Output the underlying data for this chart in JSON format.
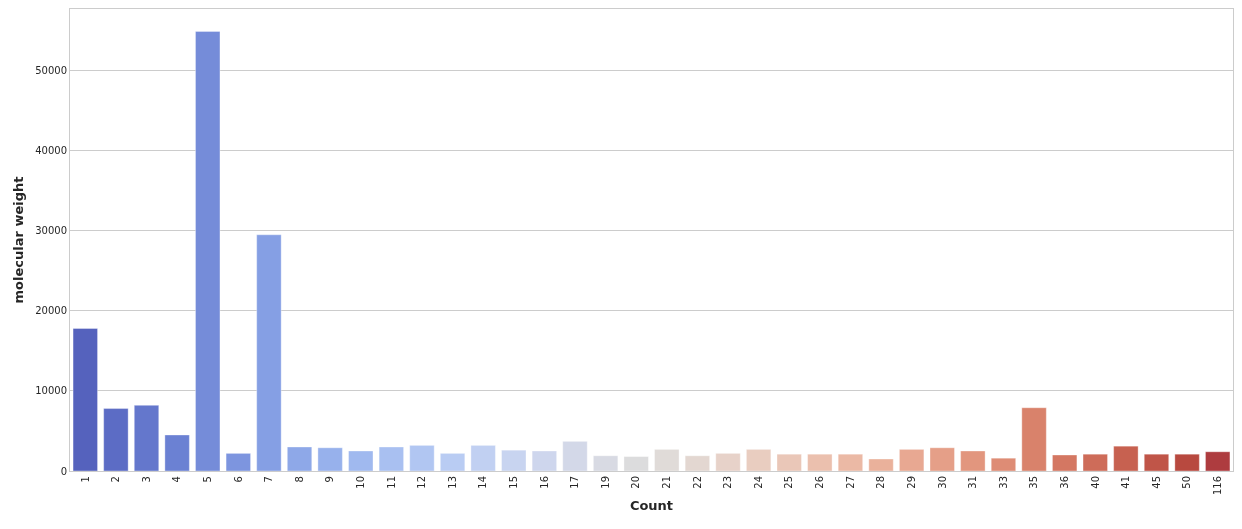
{
  "chart_data": {
    "type": "bar",
    "xlabel": "Count",
    "ylabel": "molecular weight",
    "categories": [
      "1",
      "2",
      "3",
      "4",
      "5",
      "6",
      "7",
      "8",
      "9",
      "10",
      "11",
      "12",
      "13",
      "14",
      "15",
      "16",
      "17",
      "19",
      "20",
      "21",
      "22",
      "23",
      "24",
      "25",
      "26",
      "27",
      "28",
      "29",
      "30",
      "31",
      "33",
      "35",
      "36",
      "40",
      "41",
      "45",
      "50",
      "116"
    ],
    "values": [
      17800,
      7800,
      8200,
      4500,
      54900,
      2200,
      29500,
      3000,
      2900,
      2500,
      3000,
      3200,
      2200,
      3200,
      2600,
      2500,
      3700,
      1900,
      1800,
      2700,
      1900,
      2200,
      2700,
      2100,
      2100,
      2100,
      1500,
      2700,
      2900,
      2500,
      1600,
      7900,
      2000,
      2100,
      3100,
      2100,
      2100,
      2400
    ],
    "colors": [
      "#5562bd",
      "#5c6cc5",
      "#6477cc",
      "#6b81d3",
      "#758cd9",
      "#7d95df",
      "#859fe4",
      "#8ea8e8",
      "#97b1ec",
      "#a0b9ef",
      "#a9c0f1",
      "#b1c6f2",
      "#b9ccf3",
      "#c1d0f2",
      "#c8d4f0",
      "#ced6ed",
      "#d3d8e8",
      "#d8dae3",
      "#dcdcdd",
      "#e0dbd8",
      "#e3d7d1",
      "#e7d2c9",
      "#e9cdc0",
      "#eac7b8",
      "#ebc0ae",
      "#ebb9a5",
      "#eab19b",
      "#e8a892",
      "#e59f88",
      "#e2967e",
      "#de8c75",
      "#d9826b",
      "#d47762",
      "#ce6c59",
      "#c76150",
      "#c05548",
      "#b8493f",
      "#ae3c3f"
    ],
    "ylim": [
      0,
      57700
    ],
    "yticks": [
      0,
      10000,
      20000,
      30000,
      40000,
      50000
    ],
    "grid": "y"
  }
}
